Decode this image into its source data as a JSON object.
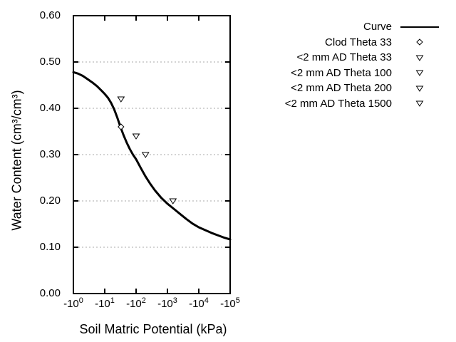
{
  "chart_data": {
    "type": "line",
    "title": "",
    "xlabel": "Soil Matric Potential (kPa)",
    "ylabel": "Water Content (cm³/cm³)",
    "x_axis": {
      "scale": "log10 of negative potential",
      "range_decades": [
        0,
        5
      ],
      "tick_labels": [
        {
          "base": "-10",
          "exp": "0"
        },
        {
          "base": "-10",
          "exp": "1"
        },
        {
          "base": "-10",
          "exp": "2"
        },
        {
          "base": "-10",
          "exp": "3"
        },
        {
          "base": "-10",
          "exp": "4"
        },
        {
          "base": "-10",
          "exp": "5"
        }
      ]
    },
    "y_axis": {
      "min": 0.0,
      "max": 0.6,
      "tick_labels": [
        "0.00",
        "0.10",
        "0.20",
        "0.30",
        "0.40",
        "0.50",
        "0.60"
      ],
      "gridlines_at": [
        0.1,
        0.2,
        0.3,
        0.4,
        0.5
      ],
      "grid_color": "#a8a8a8",
      "grid_style": "dotted"
    },
    "axis_color": "#000000",
    "legend_position": "top-right-outside",
    "series": [
      {
        "name": "Curve",
        "kind": "line",
        "color": "#000000",
        "line_width": 3,
        "points_dec_theta": [
          [
            0.0,
            0.478
          ],
          [
            0.15,
            0.475
          ],
          [
            0.3,
            0.47
          ],
          [
            0.45,
            0.463
          ],
          [
            0.6,
            0.456
          ],
          [
            0.75,
            0.448
          ],
          [
            0.9,
            0.438
          ],
          [
            1.0,
            0.431
          ],
          [
            1.1,
            0.423
          ],
          [
            1.2,
            0.412
          ],
          [
            1.3,
            0.398
          ],
          [
            1.4,
            0.38
          ],
          [
            1.5,
            0.36
          ],
          [
            1.6,
            0.342
          ],
          [
            1.7,
            0.326
          ],
          [
            1.8,
            0.312
          ],
          [
            1.9,
            0.3
          ],
          [
            2.0,
            0.29
          ],
          [
            2.15,
            0.271
          ],
          [
            2.3,
            0.253
          ],
          [
            2.45,
            0.237
          ],
          [
            2.6,
            0.223
          ],
          [
            2.8,
            0.207
          ],
          [
            3.0,
            0.194
          ],
          [
            3.2,
            0.183
          ],
          [
            3.4,
            0.172
          ],
          [
            3.6,
            0.161
          ],
          [
            3.8,
            0.151
          ],
          [
            4.0,
            0.143
          ],
          [
            4.2,
            0.137
          ],
          [
            4.4,
            0.131
          ],
          [
            4.6,
            0.126
          ],
          [
            4.8,
            0.121
          ],
          [
            5.0,
            0.117
          ]
        ]
      },
      {
        "name": "Clod Theta 33",
        "kind": "scatter",
        "marker": "diamond-open",
        "color": "#000000",
        "points": [
          {
            "kpa": -33,
            "theta": 0.36
          }
        ]
      },
      {
        "name": "<2 mm AD Theta 33",
        "kind": "scatter",
        "marker": "triangle-down-open",
        "color": "#000000",
        "points": [
          {
            "kpa": -33,
            "theta": 0.42
          }
        ]
      },
      {
        "name": "<2 mm AD Theta 100",
        "kind": "scatter",
        "marker": "triangle-down-open",
        "color": "#000000",
        "points": [
          {
            "kpa": -100,
            "theta": 0.34
          }
        ]
      },
      {
        "name": "<2 mm AD Theta 200",
        "kind": "scatter",
        "marker": "triangle-down-open",
        "color": "#000000",
        "points": [
          {
            "kpa": -200,
            "theta": 0.3
          }
        ]
      },
      {
        "name": "<2 mm AD Theta 1500",
        "kind": "scatter",
        "marker": "triangle-down-open",
        "color": "#000000",
        "points": [
          {
            "kpa": -1500,
            "theta": 0.2
          }
        ]
      }
    ]
  }
}
